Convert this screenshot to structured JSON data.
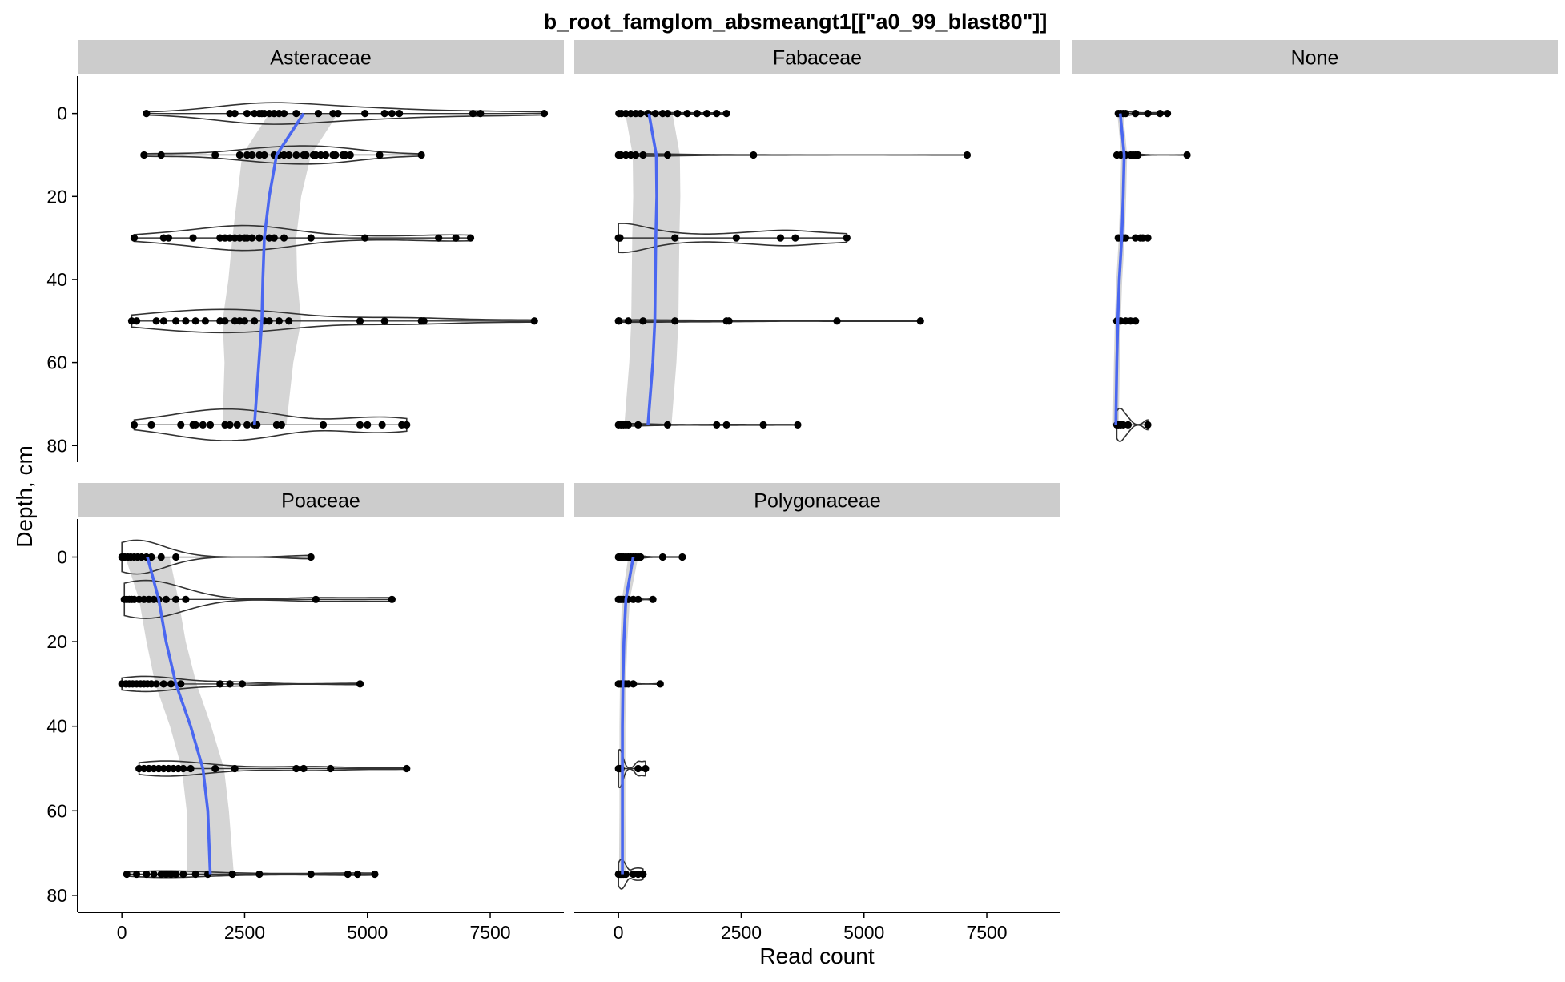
{
  "chart_data": {
    "type": "violin",
    "title": "b_root_famglom_absmeangt1[[\"a0_99_blast80\"]]",
    "xlabel": "Read count",
    "ylabel": "Depth, cm",
    "xlim": [
      -900,
      9000
    ],
    "ylim": [
      -9,
      84
    ],
    "x_ticks": [
      0,
      2500,
      5000,
      7500
    ],
    "x_tick_labels": [
      "0",
      "2500",
      "5000",
      "7500"
    ],
    "y_ticks": [
      0,
      20,
      40,
      60,
      80
    ],
    "y_tick_labels": [
      "0",
      "20",
      "40",
      "60",
      "80"
    ],
    "y_reversed": true,
    "grid": false,
    "colors": {
      "violin_outline": "#333333",
      "points": "#000000",
      "smooth_line": "#4a67f0",
      "smooth_ribbon": "#d3d3d3",
      "strip_background": "#cccccc"
    },
    "facets": [
      {
        "name": "Asteraceae",
        "depth_groups": [
          {
            "depth": 0,
            "points": [
              500,
              2200,
              2300,
              2550,
              2700,
              2800,
              2850,
              2900,
              3000,
              3100,
              3200,
              3300,
              3550,
              4000,
              4300,
              4400,
              4950,
              5350,
              5500,
              5650,
              7150,
              7300,
              8600
            ],
            "max_half_height": 2.6
          },
          {
            "depth": 10,
            "points": [
              450,
              800,
              1900,
              2400,
              2550,
              2650,
              2800,
              2900,
              3100,
              3200,
              3300,
              3400,
              3550,
              3700,
              3750,
              3900,
              3950,
              4050,
              4150,
              4300,
              4350,
              4500,
              4550,
              4650,
              5250,
              6100
            ],
            "max_half_height": 2.2
          },
          {
            "depth": 30,
            "points": [
              250,
              850,
              950,
              1450,
              2000,
              2100,
              2200,
              2300,
              2400,
              2500,
              2550,
              2650,
              2800,
              3000,
              3100,
              3300,
              3850,
              4950,
              6450,
              6800,
              7100
            ],
            "max_half_height": 3.0
          },
          {
            "depth": 50,
            "points": [
              200,
              300,
              700,
              850,
              1100,
              1300,
              1500,
              1700,
              2000,
              2100,
              2300,
              2400,
              2500,
              2700,
              2900,
              3000,
              3200,
              3400,
              4850,
              5350,
              6100,
              6150,
              8400
            ],
            "max_half_height": 2.8
          },
          {
            "depth": 75,
            "points": [
              250,
              600,
              1200,
              1450,
              1500,
              1650,
              1800,
              2100,
              2200,
              2350,
              2550,
              2700,
              2750,
              3150,
              3250,
              4100,
              4850,
              5000,
              5300,
              5700,
              5800
            ],
            "max_half_height": 3.8
          }
        ],
        "smooth": {
          "depth": [
            0,
            10,
            20,
            30,
            40,
            50,
            60,
            75
          ],
          "x": [
            3700,
            3150,
            3000,
            2900,
            2870,
            2850,
            2790,
            2700
          ],
          "se": [
            700,
            700,
            650,
            650,
            700,
            800,
            700,
            650
          ]
        }
      },
      {
        "name": "Fabaceae",
        "depth_groups": [
          {
            "depth": 0,
            "points": [
              10,
              60,
              150,
              250,
              350,
              450,
              600,
              750,
              900,
              1000,
              1200,
              1400,
              1600,
              1800,
              2000,
              2200
            ],
            "max_half_height": 0.3
          },
          {
            "depth": 10,
            "points": [
              0,
              50,
              150,
              250,
              350,
              500,
              1000,
              2750,
              7100
            ],
            "max_half_height": 0.3
          },
          {
            "depth": 30,
            "points": [
              0,
              10,
              20,
              30,
              1150,
              2400,
              3300,
              3600,
              4650
            ],
            "max_half_height": 3.5
          },
          {
            "depth": 50,
            "points": [
              0,
              10,
              200,
              500,
              1150,
              2200,
              2250,
              4450,
              6150
            ],
            "max_half_height": 0.3
          },
          {
            "depth": 75,
            "points": [
              0,
              50,
              100,
              150,
              200,
              400,
              1000,
              2000,
              2200,
              2950,
              3650
            ],
            "max_half_height": 0.3
          }
        ],
        "smooth": {
          "depth": [
            0,
            10,
            20,
            30,
            40,
            50,
            60,
            75
          ],
          "x": [
            620,
            770,
            780,
            760,
            750,
            740,
            700,
            600
          ],
          "se": [
            480,
            480,
            480,
            480,
            480,
            480,
            480,
            480
          ]
        }
      },
      {
        "name": "None",
        "depth_groups": [
          {
            "depth": 0,
            "points": [
              50,
              100,
              150,
              200,
              400,
              650,
              900,
              1050
            ],
            "max_half_height": 0.6
          },
          {
            "depth": 10,
            "points": [
              20,
              100,
              200,
              300,
              350,
              400,
              450,
              1450
            ],
            "max_half_height": 0.3
          },
          {
            "depth": 30,
            "points": [
              50,
              100,
              150,
              200,
              400,
              500,
              550,
              650
            ],
            "max_half_height": 0.3
          },
          {
            "depth": 50,
            "points": [
              20,
              50,
              100,
              200,
              300,
              400
            ],
            "max_half_height": 0.3
          },
          {
            "depth": 75,
            "points": [
              20,
              50,
              100,
              150,
              250,
              650
            ],
            "max_half_height": 4.0
          }
        ],
        "smooth": {
          "depth": [
            0,
            10,
            20,
            30,
            40,
            50,
            60,
            75
          ],
          "x": [
            90,
            170,
            150,
            120,
            70,
            40,
            20,
            0
          ],
          "se": [
            60,
            60,
            60,
            60,
            60,
            60,
            60,
            60
          ]
        }
      },
      {
        "name": "Poaceae",
        "depth_groups": [
          {
            "depth": 0,
            "points": [
              0,
              20,
              60,
              120,
              180,
              250,
              320,
              400,
              500,
              600,
              800,
              1100,
              3850
            ],
            "max_half_height": 4.0
          },
          {
            "depth": 10,
            "points": [
              50,
              100,
              150,
              200,
              250,
              350,
              450,
              550,
              650,
              750,
              900,
              1100,
              1300,
              3950,
              5500
            ],
            "max_half_height": 4.5
          },
          {
            "depth": 30,
            "points": [
              0,
              80,
              150,
              220,
              300,
              380,
              450,
              520,
              600,
              700,
              850,
              1000,
              1200,
              2000,
              2200,
              2450,
              4850
            ],
            "max_half_height": 1.8
          },
          {
            "depth": 50,
            "points": [
              350,
              450,
              550,
              650,
              750,
              850,
              950,
              1050,
              1150,
              1250,
              1400,
              1900,
              2300,
              3550,
              3700,
              4250,
              5800
            ],
            "max_half_height": 1.8
          },
          {
            "depth": 75,
            "points": [
              100,
              300,
              500,
              650,
              800,
              900,
              1000,
              1100,
              1250,
              1500,
              1750,
              2250,
              2800,
              3850,
              4600,
              4800,
              5150
            ],
            "max_half_height": 0.8
          }
        ],
        "smooth": {
          "depth": [
            0,
            10,
            20,
            30,
            40,
            50,
            60,
            75
          ],
          "x": [
            520,
            750,
            900,
            1100,
            1400,
            1650,
            1750,
            1800
          ],
          "se": [
            450,
            400,
            400,
            420,
            420,
            430,
            430,
            480
          ]
        }
      },
      {
        "name": "Polygonaceae",
        "depth_groups": [
          {
            "depth": 0,
            "points": [
              0,
              30,
              60,
              100,
              150,
              200,
              250,
              300,
              350,
              400,
              450,
              900,
              1300
            ],
            "max_half_height": 0.5
          },
          {
            "depth": 10,
            "points": [
              0,
              30,
              60,
              100,
              150,
              200,
              300,
              400,
              700
            ],
            "max_half_height": 0.5
          },
          {
            "depth": 30,
            "points": [
              0,
              30,
              60,
              100,
              150,
              200,
              300,
              850
            ],
            "max_half_height": 0.4
          },
          {
            "depth": 50,
            "points": [
              0,
              20,
              50,
              400,
              550
            ],
            "max_half_height": 4.5
          },
          {
            "depth": 75,
            "points": [
              0,
              30,
              60,
              100,
              150,
              300,
              400,
              500
            ],
            "max_half_height": 3.5
          }
        ],
        "smooth": {
          "depth": [
            0,
            10,
            20,
            30,
            40,
            50,
            60,
            75
          ],
          "x": [
            300,
            150,
            110,
            90,
            80,
            80,
            80,
            80
          ],
          "se": [
            100,
            80,
            70,
            60,
            60,
            60,
            60,
            70
          ]
        }
      }
    ]
  }
}
